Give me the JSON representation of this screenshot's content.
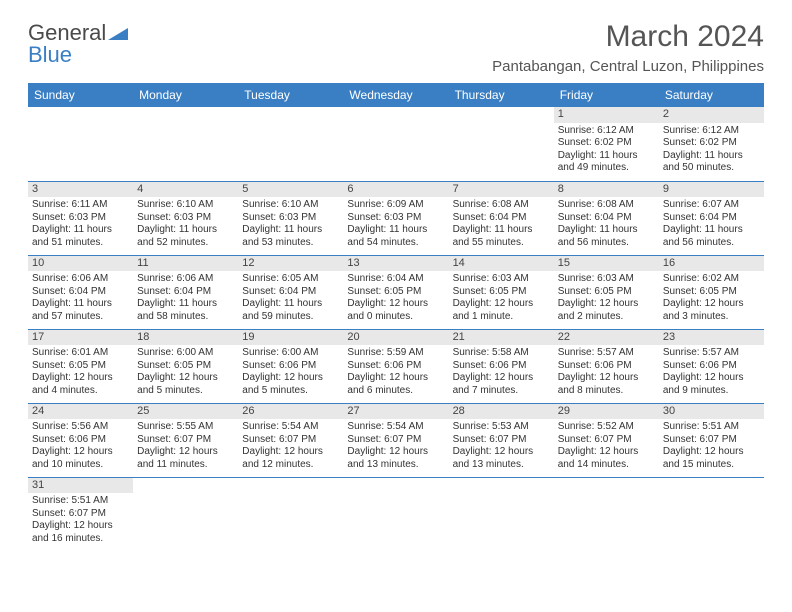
{
  "logo": {
    "part1": "General",
    "part2": "Blue"
  },
  "title": "March 2024",
  "subtitle": "Pantabangan, Central Luzon, Philippines",
  "colors": {
    "brand": "#3a7fc4",
    "headerText": "#ffffff",
    "dayShade": "#e8e8e8",
    "text": "#333333"
  },
  "weekdays": [
    "Sunday",
    "Monday",
    "Tuesday",
    "Wednesday",
    "Thursday",
    "Friday",
    "Saturday"
  ],
  "weeks": [
    [
      {
        "n": "",
        "lines": [
          "",
          "",
          "",
          ""
        ]
      },
      {
        "n": "",
        "lines": [
          "",
          "",
          "",
          ""
        ]
      },
      {
        "n": "",
        "lines": [
          "",
          "",
          "",
          ""
        ]
      },
      {
        "n": "",
        "lines": [
          "",
          "",
          "",
          ""
        ]
      },
      {
        "n": "",
        "lines": [
          "",
          "",
          "",
          ""
        ]
      },
      {
        "n": "1",
        "lines": [
          "Sunrise: 6:12 AM",
          "Sunset: 6:02 PM",
          "Daylight: 11 hours",
          "and 49 minutes."
        ]
      },
      {
        "n": "2",
        "lines": [
          "Sunrise: 6:12 AM",
          "Sunset: 6:02 PM",
          "Daylight: 11 hours",
          "and 50 minutes."
        ]
      }
    ],
    [
      {
        "n": "3",
        "lines": [
          "Sunrise: 6:11 AM",
          "Sunset: 6:03 PM",
          "Daylight: 11 hours",
          "and 51 minutes."
        ]
      },
      {
        "n": "4",
        "lines": [
          "Sunrise: 6:10 AM",
          "Sunset: 6:03 PM",
          "Daylight: 11 hours",
          "and 52 minutes."
        ]
      },
      {
        "n": "5",
        "lines": [
          "Sunrise: 6:10 AM",
          "Sunset: 6:03 PM",
          "Daylight: 11 hours",
          "and 53 minutes."
        ]
      },
      {
        "n": "6",
        "lines": [
          "Sunrise: 6:09 AM",
          "Sunset: 6:03 PM",
          "Daylight: 11 hours",
          "and 54 minutes."
        ]
      },
      {
        "n": "7",
        "lines": [
          "Sunrise: 6:08 AM",
          "Sunset: 6:04 PM",
          "Daylight: 11 hours",
          "and 55 minutes."
        ]
      },
      {
        "n": "8",
        "lines": [
          "Sunrise: 6:08 AM",
          "Sunset: 6:04 PM",
          "Daylight: 11 hours",
          "and 56 minutes."
        ]
      },
      {
        "n": "9",
        "lines": [
          "Sunrise: 6:07 AM",
          "Sunset: 6:04 PM",
          "Daylight: 11 hours",
          "and 56 minutes."
        ]
      }
    ],
    [
      {
        "n": "10",
        "lines": [
          "Sunrise: 6:06 AM",
          "Sunset: 6:04 PM",
          "Daylight: 11 hours",
          "and 57 minutes."
        ]
      },
      {
        "n": "11",
        "lines": [
          "Sunrise: 6:06 AM",
          "Sunset: 6:04 PM",
          "Daylight: 11 hours",
          "and 58 minutes."
        ]
      },
      {
        "n": "12",
        "lines": [
          "Sunrise: 6:05 AM",
          "Sunset: 6:04 PM",
          "Daylight: 11 hours",
          "and 59 minutes."
        ]
      },
      {
        "n": "13",
        "lines": [
          "Sunrise: 6:04 AM",
          "Sunset: 6:05 PM",
          "Daylight: 12 hours",
          "and 0 minutes."
        ]
      },
      {
        "n": "14",
        "lines": [
          "Sunrise: 6:03 AM",
          "Sunset: 6:05 PM",
          "Daylight: 12 hours",
          "and 1 minute."
        ]
      },
      {
        "n": "15",
        "lines": [
          "Sunrise: 6:03 AM",
          "Sunset: 6:05 PM",
          "Daylight: 12 hours",
          "and 2 minutes."
        ]
      },
      {
        "n": "16",
        "lines": [
          "Sunrise: 6:02 AM",
          "Sunset: 6:05 PM",
          "Daylight: 12 hours",
          "and 3 minutes."
        ]
      }
    ],
    [
      {
        "n": "17",
        "lines": [
          "Sunrise: 6:01 AM",
          "Sunset: 6:05 PM",
          "Daylight: 12 hours",
          "and 4 minutes."
        ]
      },
      {
        "n": "18",
        "lines": [
          "Sunrise: 6:00 AM",
          "Sunset: 6:05 PM",
          "Daylight: 12 hours",
          "and 5 minutes."
        ]
      },
      {
        "n": "19",
        "lines": [
          "Sunrise: 6:00 AM",
          "Sunset: 6:06 PM",
          "Daylight: 12 hours",
          "and 5 minutes."
        ]
      },
      {
        "n": "20",
        "lines": [
          "Sunrise: 5:59 AM",
          "Sunset: 6:06 PM",
          "Daylight: 12 hours",
          "and 6 minutes."
        ]
      },
      {
        "n": "21",
        "lines": [
          "Sunrise: 5:58 AM",
          "Sunset: 6:06 PM",
          "Daylight: 12 hours",
          "and 7 minutes."
        ]
      },
      {
        "n": "22",
        "lines": [
          "Sunrise: 5:57 AM",
          "Sunset: 6:06 PM",
          "Daylight: 12 hours",
          "and 8 minutes."
        ]
      },
      {
        "n": "23",
        "lines": [
          "Sunrise: 5:57 AM",
          "Sunset: 6:06 PM",
          "Daylight: 12 hours",
          "and 9 minutes."
        ]
      }
    ],
    [
      {
        "n": "24",
        "lines": [
          "Sunrise: 5:56 AM",
          "Sunset: 6:06 PM",
          "Daylight: 12 hours",
          "and 10 minutes."
        ]
      },
      {
        "n": "25",
        "lines": [
          "Sunrise: 5:55 AM",
          "Sunset: 6:07 PM",
          "Daylight: 12 hours",
          "and 11 minutes."
        ]
      },
      {
        "n": "26",
        "lines": [
          "Sunrise: 5:54 AM",
          "Sunset: 6:07 PM",
          "Daylight: 12 hours",
          "and 12 minutes."
        ]
      },
      {
        "n": "27",
        "lines": [
          "Sunrise: 5:54 AM",
          "Sunset: 6:07 PM",
          "Daylight: 12 hours",
          "and 13 minutes."
        ]
      },
      {
        "n": "28",
        "lines": [
          "Sunrise: 5:53 AM",
          "Sunset: 6:07 PM",
          "Daylight: 12 hours",
          "and 13 minutes."
        ]
      },
      {
        "n": "29",
        "lines": [
          "Sunrise: 5:52 AM",
          "Sunset: 6:07 PM",
          "Daylight: 12 hours",
          "and 14 minutes."
        ]
      },
      {
        "n": "30",
        "lines": [
          "Sunrise: 5:51 AM",
          "Sunset: 6:07 PM",
          "Daylight: 12 hours",
          "and 15 minutes."
        ]
      }
    ],
    [
      {
        "n": "31",
        "lines": [
          "Sunrise: 5:51 AM",
          "Sunset: 6:07 PM",
          "Daylight: 12 hours",
          "and 16 minutes."
        ]
      },
      {
        "n": "",
        "lines": [
          "",
          "",
          "",
          ""
        ]
      },
      {
        "n": "",
        "lines": [
          "",
          "",
          "",
          ""
        ]
      },
      {
        "n": "",
        "lines": [
          "",
          "",
          "",
          ""
        ]
      },
      {
        "n": "",
        "lines": [
          "",
          "",
          "",
          ""
        ]
      },
      {
        "n": "",
        "lines": [
          "",
          "",
          "",
          ""
        ]
      },
      {
        "n": "",
        "lines": [
          "",
          "",
          "",
          ""
        ]
      }
    ]
  ]
}
